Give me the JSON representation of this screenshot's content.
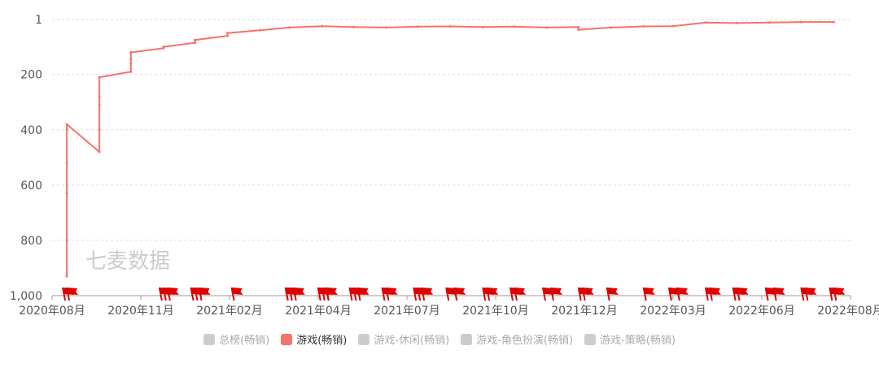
{
  "chart_data": {
    "type": "line",
    "watermark": "七麦数据",
    "y_inverted": true,
    "ylim": [
      1000,
      1
    ],
    "y_ticks": [
      1,
      200,
      400,
      600,
      800,
      1000
    ],
    "y_tick_labels": [
      "1",
      "200",
      "400",
      "600",
      "800",
      "1,000"
    ],
    "x_tick_labels": [
      "2020年08月",
      "2020年11月",
      "2021年02月",
      "2021年04月",
      "2021年07月",
      "2021年10月",
      "2021年12月",
      "2022年03月",
      "2022年06月",
      "2022年08月"
    ],
    "grid": true,
    "legend_placement": "bottom",
    "legend": [
      {
        "name": "总榜(畅销)",
        "color": "#cccccc",
        "active": false
      },
      {
        "name": "游戏(畅销)",
        "color": "#f4736a",
        "active": true
      },
      {
        "name": "游戏-休闲(畅销)",
        "color": "#cccccc",
        "active": false
      },
      {
        "name": "游戏-角色扮演(畅销)",
        "color": "#cccccc",
        "active": false
      },
      {
        "name": "游戏-策略(畅销)",
        "color": "#cccccc",
        "active": false
      }
    ],
    "series": [
      {
        "name": "游戏(畅销)",
        "color": "#f4736a",
        "x": [
          "2020-08",
          "2020-08",
          "2020-08",
          "2020-08",
          "2020-08",
          "2020-08",
          "2020-09",
          "2020-09",
          "2020-09",
          "2020-09",
          "2020-09",
          "2020-10",
          "2020-10",
          "2020-10",
          "2020-10",
          "2020-11",
          "2020-11",
          "2020-12",
          "2020-12",
          "2021-01",
          "2021-01",
          "2021-02",
          "2021-03",
          "2021-04",
          "2021-05",
          "2021-06",
          "2021-07",
          "2021-08",
          "2021-09",
          "2021-10",
          "2021-11",
          "2021-12",
          "2021-12",
          "2022-01",
          "2022-02",
          "2022-03",
          "2022-04",
          "2022-05",
          "2022-06",
          "2022-07",
          "2022-08"
        ],
        "y": [
          930,
          800,
          630,
          400,
          520,
          380,
          480,
          310,
          400,
          280,
          210,
          190,
          160,
          145,
          120,
          105,
          100,
          85,
          75,
          60,
          50,
          40,
          30,
          25,
          28,
          30,
          27,
          26,
          28,
          27,
          30,
          28,
          38,
          30,
          26,
          25,
          12,
          14,
          12,
          10,
          10
        ]
      }
    ],
    "event_markers": {
      "color": "#dd0000",
      "dates": [
        "2020-08",
        "2020-08",
        "2020-11",
        "2020-11",
        "2020-11",
        "2020-12",
        "2020-12",
        "2020-12",
        "2021-01",
        "2021-03",
        "2021-03",
        "2021-03",
        "2021-03",
        "2021-03",
        "2021-04",
        "2021-04",
        "2021-04",
        "2021-04",
        "2021-05",
        "2021-05",
        "2021-05",
        "2021-06",
        "2021-06",
        "2021-07",
        "2021-07",
        "2021-07",
        "2021-08",
        "2021-08",
        "2021-09",
        "2021-09",
        "2021-10",
        "2021-10",
        "2021-11",
        "2021-11",
        "2021-12",
        "2021-12",
        "2022-01",
        "2022-02",
        "2022-03",
        "2022-03",
        "2022-04",
        "2022-04",
        "2022-05",
        "2022-05",
        "2022-06",
        "2022-06",
        "2022-07",
        "2022-07",
        "2022-08",
        "2022-08"
      ]
    }
  }
}
